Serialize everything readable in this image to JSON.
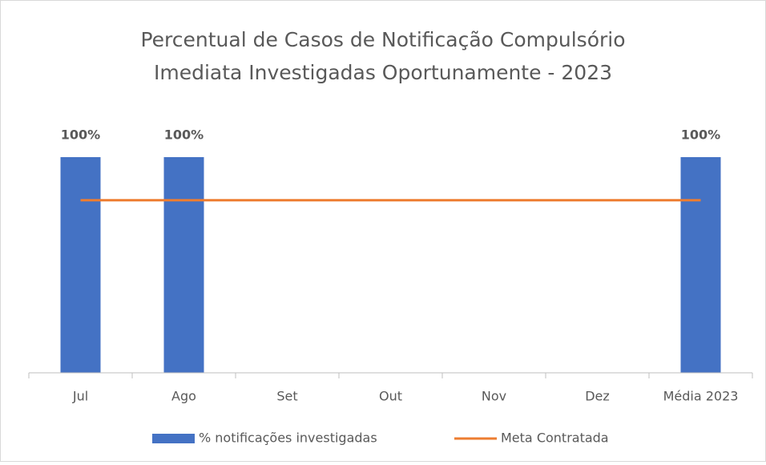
{
  "chart_data": {
    "type": "bar",
    "title": [
      "Percentual de Casos de Notificação  Compulsório",
      "Imediata Investigadas Oportunamente - 2023"
    ],
    "categories": [
      "Jul",
      "Ago",
      "Set",
      "Out",
      "Nov",
      "Dez",
      "Média 2023"
    ],
    "series": [
      {
        "name": "% notificações investigadas",
        "type": "bar",
        "color": "#4472c4",
        "values": [
          100,
          100,
          null,
          null,
          null,
          null,
          100
        ],
        "value_labels": [
          "100%",
          "100%",
          null,
          null,
          null,
          null,
          "100%"
        ]
      },
      {
        "name": "Meta Contratada",
        "type": "line",
        "color": "#ed7d31",
        "values": [
          80,
          80,
          80,
          80,
          80,
          80,
          80
        ]
      }
    ],
    "ylim": [
      0,
      100
    ],
    "legend": "bottom"
  }
}
